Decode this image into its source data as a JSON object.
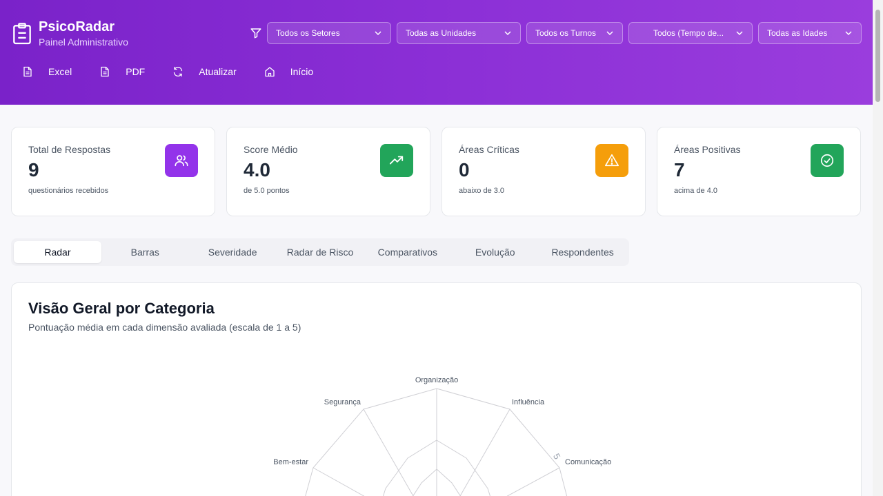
{
  "app": {
    "title": "PsicoRadar",
    "subtitle": "Painel Administrativo"
  },
  "filters": [
    {
      "label": "Todos os Setores"
    },
    {
      "label": "Todas as Unidades"
    },
    {
      "label": "Todos os Turnos"
    },
    {
      "label": "Todos (Tempo de..."
    },
    {
      "label": "Todas as Idades"
    }
  ],
  "actions": {
    "excel": "Excel",
    "pdf": "PDF",
    "refresh": "Atualizar",
    "home": "Início"
  },
  "stats": [
    {
      "label": "Total de Respostas",
      "value": "9",
      "note": "questionários recebidos",
      "icon": "users-icon",
      "color": "#9333ea"
    },
    {
      "label": "Score Médio",
      "value": "4.0",
      "note": "de 5.0 pontos",
      "icon": "trending-up-icon",
      "color": "#22a55a"
    },
    {
      "label": "Áreas Críticas",
      "value": "0",
      "note": "abaixo de 3.0",
      "icon": "warning-icon",
      "color": "#f59e0b"
    },
    {
      "label": "Áreas Positivas",
      "value": "7",
      "note": "acima de 4.0",
      "icon": "check-circle-icon",
      "color": "#22a55a"
    }
  ],
  "tabs": [
    "Radar",
    "Barras",
    "Severidade",
    "Radar de Risco",
    "Comparativos",
    "Evolução",
    "Respondentes"
  ],
  "active_tab": "Radar",
  "panel": {
    "title": "Visão Geral por Categoria",
    "subtitle": "Pontuação média em cada dimensão avaliada (escala de 1 a 5)"
  },
  "radar": {
    "axes": [
      "Organização",
      "Influência",
      "Comunicação",
      "Bem-estar",
      "Segurança"
    ],
    "tick_label": "5"
  }
}
